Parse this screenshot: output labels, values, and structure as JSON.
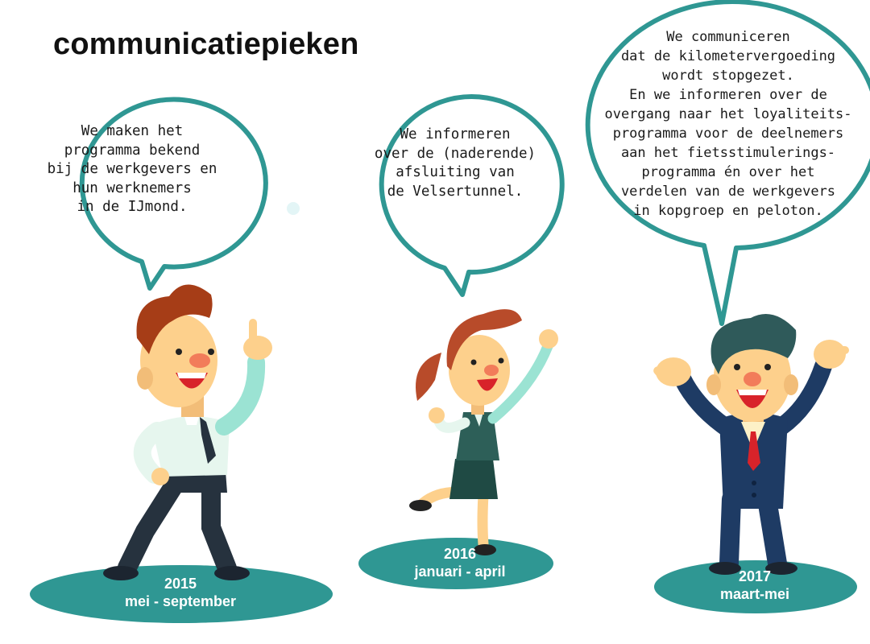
{
  "title": "communicatiepieken",
  "colors": {
    "teal": "#2f9793",
    "skin": "#fdd08c",
    "hair_brown": "#a63d17",
    "hair_red": "#b84b2a",
    "hair_dark": "#2f5a5a",
    "suit_navy": "#1e3b64",
    "skirt_dark": "#1f4a44"
  },
  "moments": [
    {
      "bubble": "We maken het\nprogramma bekend\nbij de werkgevers en\nhun werknemers\nin de IJmond.",
      "year": "2015",
      "period": "mei - september"
    },
    {
      "bubble": "We informeren\nover de (naderende)\nafsluiting van\nde Velsertunnel.",
      "year": "2016",
      "period": "januari - april"
    },
    {
      "bubble": "We communiceren\ndat de kilometervergoeding\nwordt stopgezet.\nEn we informeren over de\novergang naar het loyaliteits-\nprogramma voor de deelnemers\naan het fietsstimulerings-\nprogramma én over het\nverdelen van de werkgevers\nin kopgroep en peloton.",
      "year": "2017",
      "period": "maart-mei"
    }
  ]
}
